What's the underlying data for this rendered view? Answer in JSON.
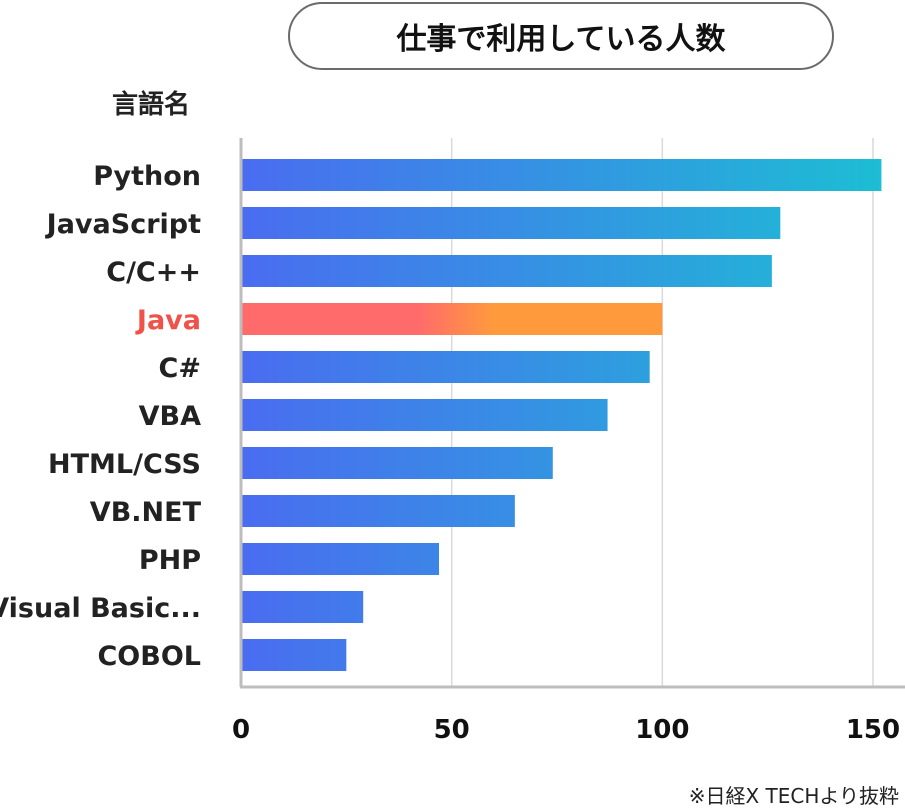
{
  "title": "仕事で利用している人数",
  "source_note": "※日経X TECHより抜粋",
  "colors": {
    "normal_start": "#4a6cf0",
    "normal_end": "#1dbdd4",
    "highlight_start": "#ff6b6b",
    "highlight_end": "#ff9a3c",
    "highlight_label": "#f0524a",
    "label": "#222222",
    "grid": "#d9d9d9",
    "axis": "#bdbdbd"
  },
  "chart_data": {
    "type": "bar",
    "orientation": "horizontal",
    "ylabel": "言語名",
    "xlabel": "",
    "categories": [
      "Python",
      "JavaScript",
      "C/C++",
      "Java",
      "C#",
      "VBA",
      "HTML/CSS",
      "VB.NET",
      "PHP",
      "Visual Basic...",
      "COBOL"
    ],
    "values": [
      152,
      128,
      126,
      100,
      97,
      87,
      74,
      65,
      47,
      29,
      25
    ],
    "highlight": "Java",
    "xlim": [
      0,
      155
    ],
    "xticks": [
      0,
      50,
      100,
      150
    ],
    "grid": true
  }
}
